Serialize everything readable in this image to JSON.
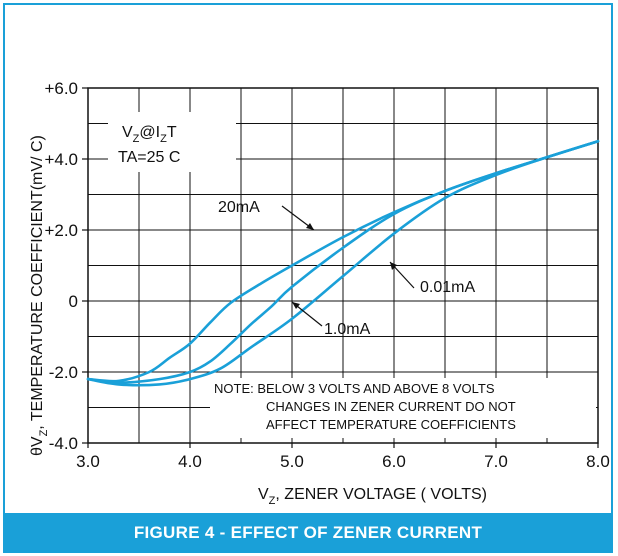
{
  "figure": {
    "caption": "FIGURE 4 - EFFECT OF ZENER CURRENT",
    "border_color": "#1aa0d8",
    "curve_color": "#1aa0d8"
  },
  "chart_data": {
    "type": "line",
    "title": "",
    "xlabel": "V",
    "xlabel_sub": "Z",
    "xlabel_rest": ", ZENER VOLTAGE ( VOLTS)",
    "ylabel": "θV",
    "ylabel_sub": "Z",
    "ylabel_rest": ",  TEMPERATURE COEFFICIENT(mV/ C)",
    "xlim": [
      3.0,
      8.0
    ],
    "ylim": [
      -4.0,
      6.0
    ],
    "x_ticks": [
      3.0,
      4.0,
      5.0,
      6.0,
      7.0,
      8.0
    ],
    "x_tick_labels": [
      "3.0",
      "4.0",
      "5.0",
      "6.0",
      "7.0",
      "8.0"
    ],
    "y_ticks": [
      -4.0,
      -2.0,
      0,
      2.0,
      4.0,
      6.0
    ],
    "y_tick_labels": [
      "-4.0",
      "-2.0",
      "0",
      "+2.0",
      "+4.0",
      "+6.0"
    ],
    "grid": true,
    "legend": "none",
    "conditions": {
      "line1_main": "V",
      "line1_sub1": "Z",
      "line1_mid": "@I",
      "line1_sub2": "Z",
      "line1_end": "T",
      "line2": "TA=25 C"
    },
    "note": [
      "NOTE: BELOW 3 VOLTS AND ABOVE 8 VOLTS",
      "CHANGES IN ZENER CURRENT DO NOT",
      "AFFECT TEMPERATURE COEFFICIENTS"
    ],
    "series": [
      {
        "name": "20mA",
        "x": [
          3.0,
          3.3,
          3.6,
          3.8,
          4.0,
          4.2,
          4.4,
          4.7,
          5.0,
          5.5,
          6.0,
          6.5,
          7.0,
          7.5,
          8.0
        ],
        "y": [
          -2.2,
          -2.25,
          -2.0,
          -1.6,
          -1.2,
          -0.6,
          -0.05,
          0.5,
          1.0,
          1.8,
          2.5,
          3.1,
          3.6,
          4.05,
          4.5
        ]
      },
      {
        "name": "1.0mA",
        "x": [
          3.0,
          3.3,
          3.7,
          4.0,
          4.2,
          4.4,
          4.6,
          4.8,
          5.0,
          5.5,
          6.0,
          6.5,
          7.0,
          7.5,
          8.0
        ],
        "y": [
          -2.2,
          -2.3,
          -2.2,
          -2.0,
          -1.7,
          -1.2,
          -0.65,
          -0.15,
          0.4,
          1.5,
          2.45,
          3.1,
          3.6,
          4.05,
          4.5
        ]
      },
      {
        "name": "0.01mA",
        "x": [
          3.0,
          3.3,
          3.7,
          4.0,
          4.3,
          4.6,
          5.0,
          5.5,
          6.0,
          6.5,
          7.0,
          7.5,
          8.0
        ],
        "y": [
          -2.2,
          -2.35,
          -2.35,
          -2.2,
          -1.9,
          -1.3,
          -0.5,
          0.7,
          1.9,
          2.9,
          3.55,
          4.05,
          4.5
        ]
      }
    ],
    "annotations": [
      {
        "text": "20mA",
        "series": "20mA"
      },
      {
        "text": "0.01mA",
        "series": "0.01mA"
      },
      {
        "text": "1.0mA",
        "series": "1.0mA"
      }
    ]
  }
}
